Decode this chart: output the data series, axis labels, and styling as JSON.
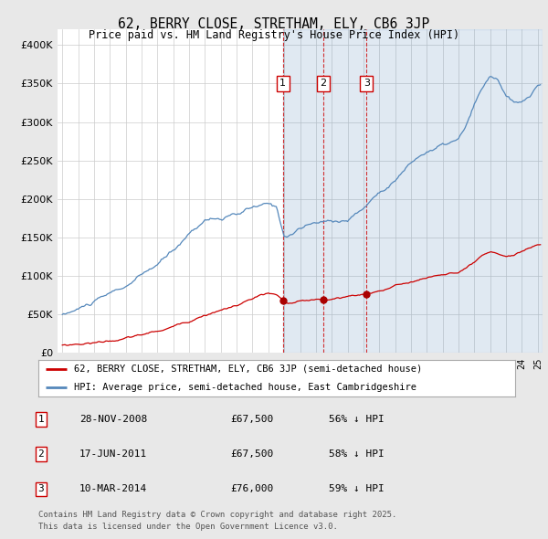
{
  "title": "62, BERRY CLOSE, STRETHAM, ELY, CB6 3JP",
  "subtitle": "Price paid vs. HM Land Registry's House Price Index (HPI)",
  "legend_line1": "62, BERRY CLOSE, STRETHAM, ELY, CB6 3JP (semi-detached house)",
  "legend_line2": "HPI: Average price, semi-detached house, East Cambridgeshire",
  "red_color": "#cc0000",
  "blue_color": "#5588bb",
  "shade_color": "#ddeeff",
  "background_color": "#e8e8e8",
  "plot_background": "#ffffff",
  "ylim": [
    0,
    420000
  ],
  "yticks": [
    0,
    50000,
    100000,
    150000,
    200000,
    250000,
    300000,
    350000,
    400000
  ],
  "ytick_labels": [
    "£0",
    "£50K",
    "£100K",
    "£150K",
    "£200K",
    "£250K",
    "£300K",
    "£350K",
    "£400K"
  ],
  "xlim_start": 1994.7,
  "xlim_end": 2025.3,
  "transactions": [
    {
      "num": 1,
      "date": "28-NOV-2008",
      "price": "£67,500",
      "hpi": "56% ↓ HPI",
      "year": 2008.92
    },
    {
      "num": 2,
      "date": "17-JUN-2011",
      "price": "£67,500",
      "hpi": "58% ↓ HPI",
      "year": 2011.46
    },
    {
      "num": 3,
      "date": "10-MAR-2014",
      "price": "£76,000",
      "hpi": "59% ↓ HPI",
      "year": 2014.19
    }
  ],
  "footnote1": "Contains HM Land Registry data © Crown copyright and database right 2025.",
  "footnote2": "This data is licensed under the Open Government Licence v3.0."
}
